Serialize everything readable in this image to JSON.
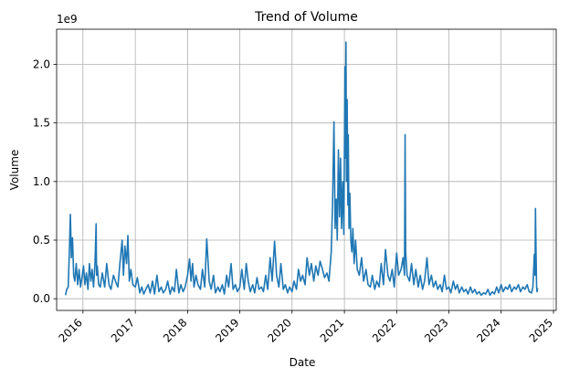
{
  "chart_data": {
    "type": "line",
    "title": "Trend of Volume",
    "xlabel": "Date",
    "ylabel": "Volume",
    "y_offset_label": "1e9",
    "x_ticks": [
      "2016",
      "2017",
      "2018",
      "2019",
      "2020",
      "2021",
      "2022",
      "2023",
      "2024",
      "2025"
    ],
    "y_ticks": [
      "0.0",
      "0.5",
      "1.0",
      "1.5",
      "2.0"
    ],
    "xlim": [
      "2015-07-01",
      "2025-01-20"
    ],
    "ylim": [
      -0.1,
      2.3
    ],
    "y_unit_scale": 1000000000,
    "grid": true,
    "line_color": "#1f77b4",
    "series": [
      {
        "x": [
          "2015-09-01",
          "2015-09-10",
          "2015-09-20",
          "2015-09-28",
          "2015-10-05",
          "2015-10-12",
          "2015-10-20",
          "2015-10-28",
          "2015-11-05",
          "2015-11-15",
          "2015-11-25",
          "2015-12-05",
          "2015-12-15",
          "2015-12-25",
          "2016-01-05",
          "2016-01-15",
          "2016-01-25",
          "2016-02-05",
          "2016-02-15",
          "2016-02-25",
          "2016-03-05",
          "2016-03-15",
          "2016-03-25",
          "2016-04-02",
          "2016-04-05",
          "2016-04-10",
          "2016-04-20",
          "2016-05-01",
          "2016-05-15",
          "2016-06-01",
          "2016-06-15",
          "2016-07-01",
          "2016-07-15",
          "2016-08-01",
          "2016-08-15",
          "2016-09-01",
          "2016-09-15",
          "2016-10-01",
          "2016-10-10",
          "2016-10-20",
          "2016-11-01",
          "2016-11-10",
          "2016-11-20",
          "2016-12-01",
          "2016-12-15",
          "2017-01-01",
          "2017-01-15",
          "2017-02-01",
          "2017-02-15",
          "2017-03-01",
          "2017-03-15",
          "2017-04-01",
          "2017-04-15",
          "2017-05-01",
          "2017-05-15",
          "2017-06-01",
          "2017-06-15",
          "2017-07-01",
          "2017-07-15",
          "2017-08-01",
          "2017-08-15",
          "2017-09-01",
          "2017-09-15",
          "2017-10-01",
          "2017-10-15",
          "2017-11-01",
          "2017-11-15",
          "2017-12-01",
          "2017-12-15",
          "2018-01-01",
          "2018-01-15",
          "2018-01-25",
          "2018-02-05",
          "2018-02-15",
          "2018-03-01",
          "2018-03-15",
          "2018-04-01",
          "2018-04-15",
          "2018-05-01",
          "2018-05-15",
          "2018-06-01",
          "2018-06-15",
          "2018-07-01",
          "2018-07-15",
          "2018-08-01",
          "2018-08-15",
          "2018-09-01",
          "2018-09-15",
          "2018-10-01",
          "2018-10-15",
          "2018-11-01",
          "2018-11-15",
          "2018-12-01",
          "2018-12-15",
          "2019-01-01",
          "2019-01-15",
          "2019-02-01",
          "2019-02-15",
          "2019-03-01",
          "2019-03-15",
          "2019-04-01",
          "2019-04-15",
          "2019-05-01",
          "2019-05-15",
          "2019-06-01",
          "2019-06-15",
          "2019-07-01",
          "2019-07-15",
          "2019-08-01",
          "2019-08-15",
          "2019-09-01",
          "2019-09-15",
          "2019-10-01",
          "2019-10-15",
          "2019-11-01",
          "2019-11-15",
          "2019-12-01",
          "2019-12-15",
          "2020-01-01",
          "2020-01-15",
          "2020-02-01",
          "2020-02-15",
          "2020-03-01",
          "2020-03-15",
          "2020-04-01",
          "2020-04-15",
          "2020-05-01",
          "2020-05-15",
          "2020-06-01",
          "2020-06-15",
          "2020-07-01",
          "2020-07-15",
          "2020-08-01",
          "2020-08-15",
          "2020-09-01",
          "2020-09-15",
          "2020-10-01",
          "2020-10-10",
          "2020-10-20",
          "2020-10-28",
          "2020-11-05",
          "2020-11-12",
          "2020-11-20",
          "2020-11-28",
          "2020-12-05",
          "2020-12-12",
          "2020-12-20",
          "2020-12-28",
          "2021-01-05",
          "2021-01-08",
          "2021-01-12",
          "2021-01-15",
          "2021-01-20",
          "2021-01-25",
          "2021-01-28",
          "2021-02-02",
          "2021-02-08",
          "2021-02-15",
          "2021-02-22",
          "2021-03-01",
          "2021-03-10",
          "2021-03-20",
          "2021-04-01",
          "2021-04-15",
          "2021-05-01",
          "2021-05-15",
          "2021-06-01",
          "2021-06-15",
          "2021-07-01",
          "2021-07-15",
          "2021-08-01",
          "2021-08-15",
          "2021-09-01",
          "2021-09-15",
          "2021-10-01",
          "2021-10-15",
          "2021-11-01",
          "2021-11-15",
          "2021-12-01",
          "2021-12-15",
          "2022-01-01",
          "2022-01-15",
          "2022-02-01",
          "2022-02-15",
          "2022-02-25",
          "2022-03-01",
          "2022-03-05",
          "2022-03-15",
          "2022-04-01",
          "2022-04-15",
          "2022-05-01",
          "2022-05-15",
          "2022-06-01",
          "2022-06-15",
          "2022-07-01",
          "2022-07-15",
          "2022-08-01",
          "2022-08-15",
          "2022-09-01",
          "2022-09-15",
          "2022-10-01",
          "2022-10-15",
          "2022-11-01",
          "2022-11-15",
          "2022-12-01",
          "2022-12-15",
          "2023-01-01",
          "2023-01-15",
          "2023-02-01",
          "2023-02-15",
          "2023-03-01",
          "2023-03-15",
          "2023-04-01",
          "2023-04-15",
          "2023-05-01",
          "2023-05-15",
          "2023-06-01",
          "2023-06-15",
          "2023-07-01",
          "2023-07-15",
          "2023-08-01",
          "2023-08-15",
          "2023-09-01",
          "2023-09-15",
          "2023-10-01",
          "2023-10-15",
          "2023-11-01",
          "2023-11-15",
          "2023-12-01",
          "2023-12-15",
          "2024-01-01",
          "2024-01-15",
          "2024-02-01",
          "2024-02-15",
          "2024-03-01",
          "2024-03-15",
          "2024-04-01",
          "2024-04-15",
          "2024-05-01",
          "2024-05-15",
          "2024-06-01",
          "2024-06-15",
          "2024-07-01",
          "2024-07-15",
          "2024-08-01",
          "2024-08-10",
          "2024-08-20",
          "2024-08-25",
          "2024-08-28",
          "2024-09-01",
          "2024-09-05",
          "2024-09-08",
          "2024-09-12"
        ],
        "values": [
          0.03,
          0.08,
          0.1,
          0.4,
          0.72,
          0.35,
          0.52,
          0.2,
          0.15,
          0.3,
          0.12,
          0.25,
          0.1,
          0.18,
          0.28,
          0.12,
          0.22,
          0.08,
          0.3,
          0.15,
          0.25,
          0.1,
          0.3,
          0.64,
          0.2,
          0.28,
          0.12,
          0.1,
          0.22,
          0.1,
          0.3,
          0.12,
          0.08,
          0.2,
          0.15,
          0.1,
          0.3,
          0.5,
          0.2,
          0.45,
          0.3,
          0.54,
          0.15,
          0.25,
          0.12,
          0.1,
          0.18,
          0.05,
          0.1,
          0.04,
          0.08,
          0.12,
          0.05,
          0.15,
          0.04,
          0.2,
          0.06,
          0.1,
          0.05,
          0.08,
          0.15,
          0.04,
          0.1,
          0.06,
          0.25,
          0.05,
          0.12,
          0.06,
          0.1,
          0.2,
          0.34,
          0.15,
          0.3,
          0.1,
          0.2,
          0.12,
          0.08,
          0.25,
          0.1,
          0.51,
          0.15,
          0.08,
          0.2,
          0.05,
          0.1,
          0.06,
          0.12,
          0.04,
          0.2,
          0.1,
          0.3,
          0.08,
          0.12,
          0.06,
          0.1,
          0.25,
          0.08,
          0.3,
          0.15,
          0.06,
          0.12,
          0.05,
          0.18,
          0.08,
          0.1,
          0.06,
          0.2,
          0.08,
          0.35,
          0.15,
          0.49,
          0.2,
          0.1,
          0.3,
          0.08,
          0.12,
          0.05,
          0.1,
          0.06,
          0.15,
          0.08,
          0.25,
          0.15,
          0.2,
          0.12,
          0.35,
          0.2,
          0.3,
          0.15,
          0.28,
          0.2,
          0.32,
          0.25,
          0.18,
          0.22,
          0.15,
          0.4,
          0.8,
          1.51,
          0.6,
          0.85,
          0.5,
          1.27,
          0.7,
          1.2,
          0.6,
          1.0,
          0.55,
          1.98,
          1.2,
          2.19,
          1.0,
          1.7,
          0.8,
          1.4,
          0.6,
          0.9,
          0.5,
          0.4,
          0.6,
          0.3,
          0.5,
          0.25,
          0.2,
          0.35,
          0.15,
          0.25,
          0.12,
          0.1,
          0.2,
          0.08,
          0.15,
          0.1,
          0.3,
          0.12,
          0.42,
          0.2,
          0.15,
          0.25,
          0.1,
          0.39,
          0.2,
          0.25,
          0.35,
          0.2,
          1.4,
          0.4,
          0.2,
          0.15,
          0.3,
          0.12,
          0.25,
          0.1,
          0.2,
          0.08,
          0.15,
          0.35,
          0.12,
          0.2,
          0.1,
          0.15,
          0.08,
          0.12,
          0.06,
          0.2,
          0.08,
          0.1,
          0.05,
          0.15,
          0.08,
          0.12,
          0.05,
          0.1,
          0.06,
          0.08,
          0.04,
          0.1,
          0.05,
          0.08,
          0.04,
          0.06,
          0.03,
          0.05,
          0.04,
          0.08,
          0.03,
          0.06,
          0.04,
          0.1,
          0.05,
          0.12,
          0.06,
          0.1,
          0.08,
          0.12,
          0.06,
          0.1,
          0.08,
          0.12,
          0.06,
          0.1,
          0.08,
          0.12,
          0.06,
          0.05,
          0.1,
          0.38,
          0.2,
          0.77,
          0.4,
          0.1,
          0.06,
          0.09
        ]
      }
    ]
  }
}
